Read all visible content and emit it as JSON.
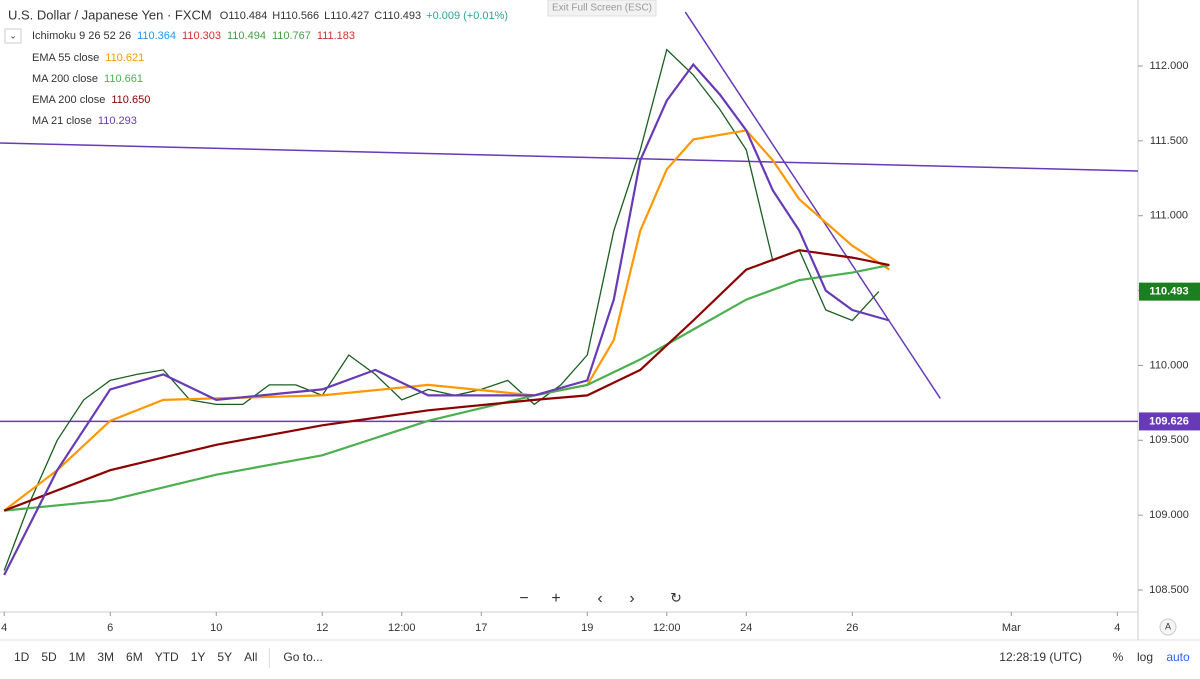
{
  "header": {
    "symbol": "U.S. Dollar / Japanese Yen · FXCM",
    "ohlc": [
      "O110.484",
      "H110.566",
      "L110.427",
      "C110.493"
    ],
    "change": "+0.009 (+0.01%)",
    "exit": "Exit Full Screen (ESC)"
  },
  "ichimoku": {
    "name": "Ichimoku 9 26 52 26",
    "values": [
      "110.364",
      "110.303",
      "110.494",
      "110.767",
      "111.183"
    ],
    "colors": [
      "#2196f3",
      "#d32f2f",
      "#43a047",
      "#43a047",
      "#d32f2f"
    ]
  },
  "toolbar": {
    "ranges": [
      "1D",
      "5D",
      "1M",
      "3M",
      "6M",
      "YTD",
      "1Y",
      "5Y",
      "All"
    ],
    "goto": "Go to...",
    "clock": "12:28:19 (UTC)",
    "percent": "%",
    "log": "log",
    "auto": "auto"
  },
  "chart_data": {
    "type": "line",
    "grid": false,
    "xlim": [
      -0.08,
      21.39
    ],
    "xticks": [
      {
        "value": 0,
        "label": "4"
      },
      {
        "value": 2,
        "label": "6"
      },
      {
        "value": 4,
        "label": "10"
      },
      {
        "value": 6,
        "label": "12"
      },
      {
        "value": 7.5,
        "label": "12:00"
      },
      {
        "value": 9,
        "label": "17"
      },
      {
        "value": 11,
        "label": "19"
      },
      {
        "value": 12.5,
        "label": "12:00"
      },
      {
        "value": 14,
        "label": "24"
      },
      {
        "value": 16,
        "label": "26"
      },
      {
        "value": 19,
        "label": "Mar"
      },
      {
        "value": 21,
        "label": "4"
      }
    ],
    "ylim": [
      108.353,
      112.441
    ],
    "yticks": [
      {
        "value": 108.5,
        "label": "108.500"
      },
      {
        "value": 109,
        "label": "109.000"
      },
      {
        "value": 109.5,
        "label": "109.500"
      },
      {
        "value": 110,
        "label": "110.000"
      },
      {
        "value": 110.5,
        "label": "110.500"
      },
      {
        "value": 111,
        "label": "111.000"
      },
      {
        "value": 111.5,
        "label": "111.500"
      },
      {
        "value": 112,
        "label": "112.000"
      }
    ],
    "price": {
      "color": "#1b5e20",
      "x": [
        0,
        0.5,
        1,
        1.5,
        2,
        2.5,
        3,
        3.5,
        4,
        4.5,
        5,
        5.5,
        6,
        6.5,
        7,
        7.5,
        8,
        8.5,
        9,
        9.5,
        10,
        10.5,
        11,
        11.5,
        12,
        12.5,
        13,
        13.5,
        14,
        14.5,
        15,
        15.5,
        16,
        16.5
      ],
      "values": [
        108.63,
        109.1,
        109.5,
        109.77,
        109.9,
        109.94,
        109.97,
        109.77,
        109.74,
        109.74,
        109.87,
        109.87,
        109.8,
        110.07,
        109.94,
        109.77,
        109.84,
        109.8,
        109.84,
        109.9,
        109.74,
        109.87,
        110.07,
        110.9,
        111.44,
        112.11,
        111.94,
        111.71,
        111.44,
        110.7,
        110.77,
        110.37,
        110.3,
        110.493
      ]
    },
    "series": [
      {
        "name": "EMA 55 close",
        "legend_value": "110.621",
        "color": "#ff9800",
        "x": [
          0,
          1,
          2,
          3,
          4,
          6,
          8,
          10,
          11,
          11.5,
          12,
          12.5,
          13,
          14,
          14.5,
          15,
          16,
          16.7
        ],
        "values": [
          109.03,
          109.3,
          109.63,
          109.77,
          109.78,
          109.8,
          109.87,
          109.8,
          109.87,
          110.17,
          110.9,
          111.31,
          111.51,
          111.57,
          111.37,
          111.11,
          110.8,
          110.64
        ]
      },
      {
        "name": "MA 200 close",
        "legend_value": "110.661",
        "color": "#4caf50",
        "x": [
          0,
          2,
          4,
          6,
          8,
          10,
          11,
          12,
          13,
          14,
          15,
          16,
          16.7
        ],
        "values": [
          109.03,
          109.1,
          109.27,
          109.4,
          109.63,
          109.8,
          109.87,
          110.04,
          110.24,
          110.44,
          110.57,
          110.62,
          110.67
        ]
      },
      {
        "name": "EMA 200 close",
        "legend_value": "110.650",
        "color": "#8b0000",
        "x": [
          0,
          2,
          4,
          6,
          8,
          10,
          11,
          12,
          13,
          14,
          15,
          16,
          16.7
        ],
        "values": [
          109.03,
          109.3,
          109.47,
          109.6,
          109.7,
          109.77,
          109.8,
          109.97,
          110.3,
          110.64,
          110.77,
          110.72,
          110.67
        ]
      },
      {
        "name": "MA 21 close",
        "legend_value": "110.293",
        "color": "#673ab7",
        "x": [
          0,
          1,
          2,
          3,
          4,
          6,
          7,
          8,
          10,
          11,
          11.5,
          12,
          12.5,
          13,
          13.5,
          14,
          14.5,
          15,
          15.5,
          16,
          16.7
        ],
        "values": [
          108.6,
          109.3,
          109.84,
          109.94,
          109.77,
          109.84,
          109.97,
          109.8,
          109.8,
          109.9,
          110.44,
          111.37,
          111.77,
          112.01,
          111.81,
          111.57,
          111.17,
          110.9,
          110.5,
          110.37,
          110.3
        ]
      }
    ],
    "trend_lines": [
      {
        "color": "#673ab7",
        "x": [
          -0.08,
          21.39
        ],
        "values": [
          111.486,
          111.299
        ]
      },
      {
        "color": "#673ab7",
        "x": [
          12.85,
          17.66
        ],
        "values": [
          112.36,
          109.78
        ]
      }
    ],
    "hlines": [
      {
        "value": 109.626,
        "label": "109.626",
        "color": "#673ab7"
      }
    ],
    "last_price": {
      "value": 110.493,
      "label": "110.493",
      "color": "#1b7e1f"
    }
  }
}
